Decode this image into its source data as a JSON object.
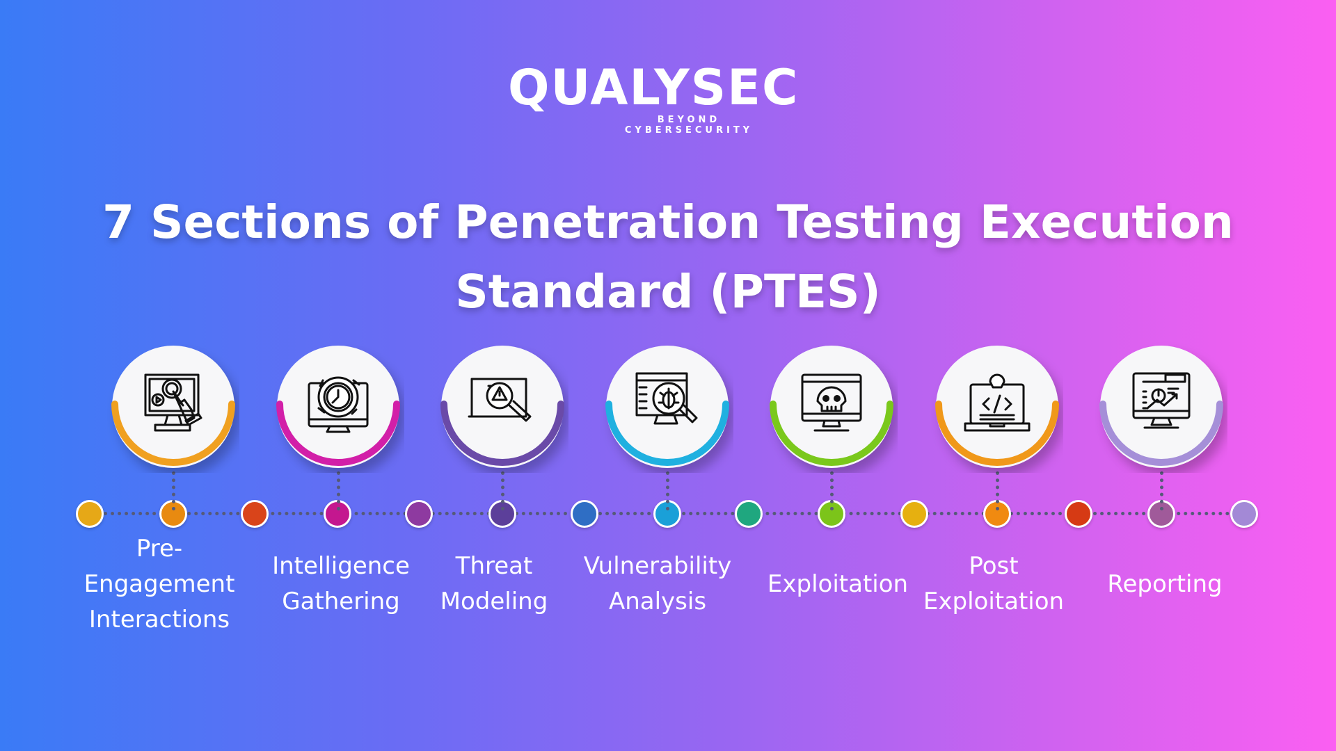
{
  "logo": {
    "word": "QUALYSEC",
    "tagline": "BEYOND CYBERSECURITY"
  },
  "title": {
    "line1": "7 Sections of Penetration Testing Execution",
    "line2": "Standard (PTES)"
  },
  "sections": [
    {
      "lines": [
        "Pre-",
        "Engagement",
        "Interactions"
      ],
      "icon": "monitor-touch-icon",
      "accent": "#f0a020"
    },
    {
      "lines": [
        "Intelligence",
        "Gathering"
      ],
      "icon": "monitor-clock-cycle-icon",
      "accent": "#d21fa8"
    },
    {
      "lines": [
        "Threat",
        "Modeling"
      ],
      "icon": "warning-magnifier-icon",
      "accent": "#6a4aa8"
    },
    {
      "lines": [
        "Vulnerability",
        "Analysis"
      ],
      "icon": "bug-magnifier-icon",
      "accent": "#1fb0e0"
    },
    {
      "lines": [
        "Exploitation"
      ],
      "icon": "skull-monitor-icon",
      "accent": "#7ac81c"
    },
    {
      "lines": [
        "Post",
        "Exploitation"
      ],
      "icon": "skull-laptop-code-icon",
      "accent": "#f0981a"
    },
    {
      "lines": [
        "Reporting"
      ],
      "icon": "monitor-report-chart-icon",
      "accent": "#a58fd8"
    }
  ],
  "timeline_dot_colors": [
    "#e6a817",
    "#e88a10",
    "#d9441a",
    "#c4178f",
    "#8e3aa0",
    "#5c3f9a",
    "#2f6ec4",
    "#1aa0d8",
    "#1fa77f",
    "#7cc41a",
    "#e6b010",
    "#f08a10",
    "#d63a14",
    "#a05a9a",
    "#a389d6"
  ]
}
